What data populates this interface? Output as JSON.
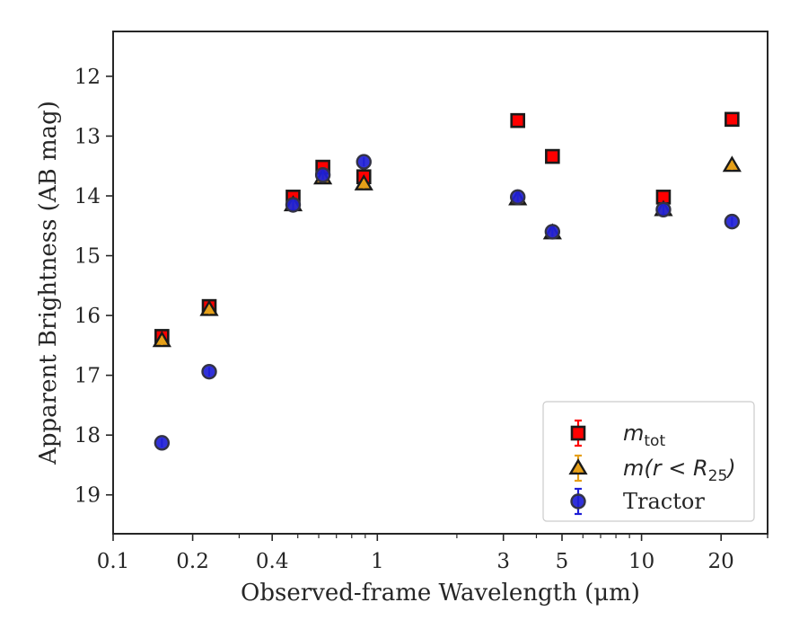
{
  "chart_data": {
    "type": "scatter",
    "xscale": "log",
    "xlabel": "Observed-frame Wavelength (μm)",
    "ylabel": "Apparent Brightness (AB mag)",
    "xlim": [
      0.1,
      30
    ],
    "ylim": [
      19.65,
      11.25
    ],
    "y_inverted": true,
    "grid": false,
    "legend_position": "lower-right",
    "xticks": [
      {
        "value": 0.1,
        "label": "0.1"
      },
      {
        "value": 0.2,
        "label": "0.2"
      },
      {
        "value": 0.4,
        "label": "0.4"
      },
      {
        "value": 1,
        "label": "1"
      },
      {
        "value": 3,
        "label": "3"
      },
      {
        "value": 5,
        "label": "5"
      },
      {
        "value": 10,
        "label": "10"
      },
      {
        "value": 20,
        "label": "20"
      }
    ],
    "yticks": [
      {
        "value": 12,
        "label": "12"
      },
      {
        "value": 13,
        "label": "13"
      },
      {
        "value": 14,
        "label": "14"
      },
      {
        "value": 15,
        "label": "15"
      },
      {
        "value": 16,
        "label": "16"
      },
      {
        "value": 17,
        "label": "17"
      },
      {
        "value": 18,
        "label": "18"
      },
      {
        "value": 19,
        "label": "19"
      }
    ],
    "series": [
      {
        "name": "m_tot",
        "legend_math": {
          "base": "m",
          "sub": "tot"
        },
        "marker": "square",
        "color": "#ff0000",
        "edge_color": "#1a1a1a",
        "errbar_color": "#ff0000",
        "x": [
          0.153,
          0.231,
          0.48,
          0.622,
          0.889,
          3.4,
          4.6,
          12.1,
          22.0
        ],
        "y": [
          16.35,
          15.85,
          14.02,
          13.52,
          13.68,
          12.74,
          13.34,
          14.02,
          12.72
        ]
      },
      {
        "name": "m(r < R_25)",
        "legend_math": {
          "base": "m(r < R",
          "sub": "25",
          "tail": ")"
        },
        "marker": "triangle",
        "color": "#e6a019",
        "edge_color": "#1a1a1a",
        "errbar_color": "#e6a019",
        "x": [
          0.153,
          0.231,
          0.48,
          0.622,
          0.889,
          3.4,
          4.6,
          12.1,
          22.0
        ],
        "y": [
          16.42,
          15.9,
          14.15,
          13.7,
          13.8,
          14.05,
          14.62,
          14.23,
          13.49
        ]
      },
      {
        "name": "Tractor",
        "marker": "circle",
        "color": "#1f1fd6",
        "edge_color": "#333344",
        "errbar_color": "#1f1fd6",
        "x": [
          0.153,
          0.231,
          0.48,
          0.622,
          0.889,
          3.4,
          4.6,
          12.1,
          22.0
        ],
        "y": [
          18.13,
          16.94,
          14.15,
          13.65,
          13.43,
          14.02,
          14.6,
          14.23,
          14.43
        ]
      }
    ]
  }
}
